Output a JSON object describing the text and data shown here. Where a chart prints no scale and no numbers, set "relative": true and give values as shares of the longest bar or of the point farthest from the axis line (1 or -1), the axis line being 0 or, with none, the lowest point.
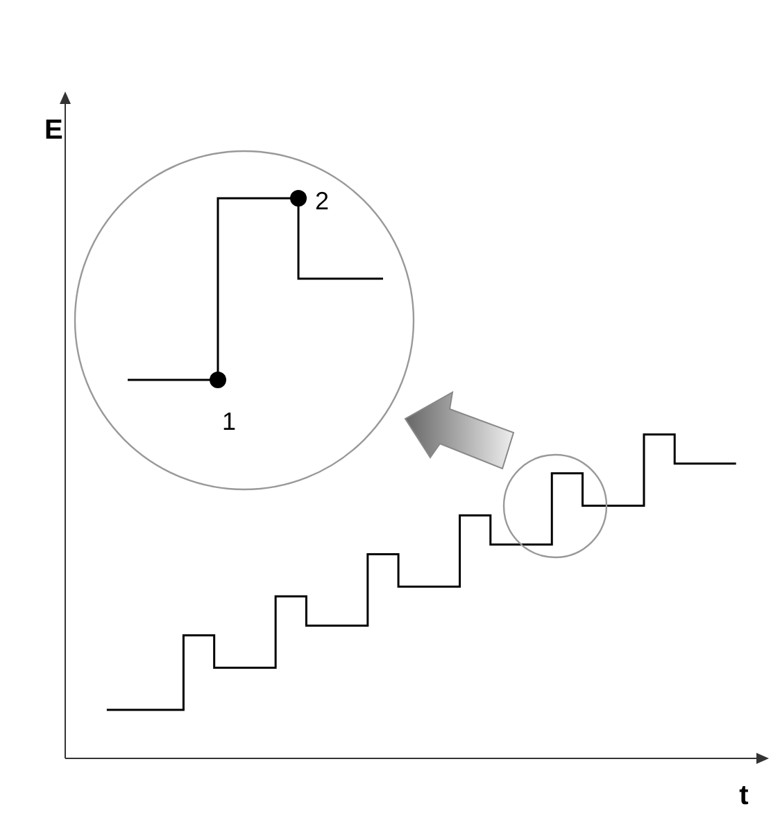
{
  "chart_data": {
    "type": "step",
    "relative": true,
    "xlabel": "t",
    "tick_labels": false,
    "categories": [
      null,
      null,
      null,
      null,
      null,
      null,
      null,
      null,
      null,
      null,
      null,
      null,
      null,
      null,
      null,
      null,
      null,
      null,
      null,
      null,
      null,
      null,
      null,
      null,
      null,
      null,
      null,
      null,
      null,
      null,
      null,
      null,
      null,
      null,
      null,
      null,
      null,
      null,
      null,
      null,
      null,
      null
    ],
    "series": [
      {
        "color": "#000000",
        "values": [
          0.15,
          0.15,
          0.15,
          0.15,
          0.15,
          0.38,
          0.38,
          0.28,
          0.28,
          0.28,
          0.28,
          0.5,
          0.5,
          0.41,
          0.41,
          0.41,
          0.41,
          0.63,
          0.63,
          0.53,
          0.53,
          0.53,
          0.53,
          0.75,
          0.75,
          0.66,
          0.66,
          0.66,
          0.66,
          0.88,
          0.88,
          0.78,
          0.78,
          0.78,
          0.78,
          1,
          1,
          0.91,
          0.91,
          0.91,
          0.91,
          0.91
        ]
      }
    ],
    "annotations": [
      "1",
      "2",
      "E"
    ]
  }
}
